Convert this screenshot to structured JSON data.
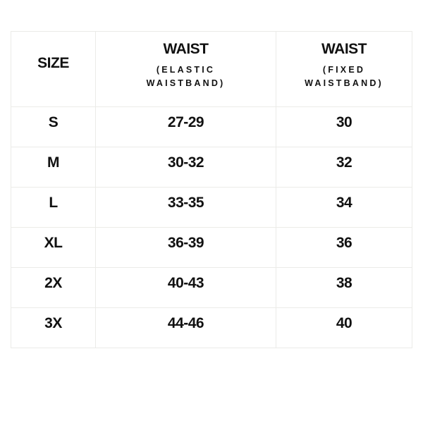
{
  "table": {
    "headers": [
      {
        "title": "SIZE"
      },
      {
        "title": "WAIST",
        "subtitle": "(ELASTIC WAISTBAND)"
      },
      {
        "title": "WAIST",
        "subtitle": "(FIXED WAISTBAND)"
      }
    ],
    "rows": [
      [
        "S",
        "27-29",
        "30"
      ],
      [
        "M",
        "30-32",
        "32"
      ],
      [
        "L",
        "33-35",
        "34"
      ],
      [
        "XL",
        "36-39",
        "36"
      ],
      [
        "2X",
        "40-43",
        "38"
      ],
      [
        "3X",
        "44-46",
        "40"
      ]
    ]
  }
}
